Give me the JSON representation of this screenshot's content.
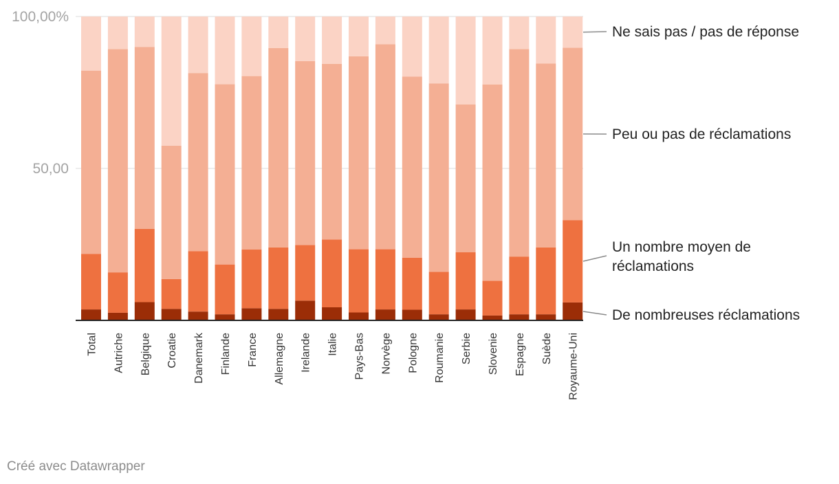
{
  "chart_data": {
    "type": "stacked-bar",
    "orientation": "vertical",
    "ylim": [
      0,
      100
    ],
    "ytick_labels": [
      {
        "value": 100,
        "label": "100,00%"
      },
      {
        "value": 50,
        "label": "50,00"
      }
    ],
    "grid": true,
    "legend_placement": "right, aligned to last bar",
    "categories": [
      "Total",
      "Autriche",
      "Belgique",
      "Croatie",
      "Danemark",
      "Finlande",
      "France",
      "Allemagne",
      "Irelande",
      "Italie",
      "Pays-Bas",
      "Norvège",
      "Pologne",
      "Roumanie",
      "Serbie",
      "Slovenie",
      "Espagne",
      "Suède",
      "Royaume-Uni"
    ],
    "series": [
      {
        "name": "De nombreuses réclamations",
        "color": "#9b2d07",
        "values": [
          3.6,
          2.5,
          6.0,
          3.8,
          2.9,
          2.0,
          4.0,
          3.8,
          6.5,
          4.3,
          2.6,
          3.6,
          3.5,
          2.0,
          3.6,
          1.6,
          2.0,
          2.0,
          5.9
        ]
      },
      {
        "name": "Un nombre moyen de réclamations",
        "color": "#ee7140",
        "values": [
          18.3,
          13.3,
          24.1,
          9.8,
          19.9,
          16.4,
          19.3,
          20.2,
          18.3,
          22.3,
          20.8,
          19.8,
          17.1,
          14.0,
          18.8,
          11.4,
          19.0,
          22.0,
          27.1
        ]
      },
      {
        "name": "Peu ou pas de réclamations",
        "color": "#f4af94",
        "values": [
          60.3,
          73.5,
          59.9,
          43.9,
          58.6,
          59.3,
          57.1,
          65.6,
          60.5,
          57.8,
          63.5,
          67.5,
          59.6,
          62.0,
          48.7,
          64.6,
          68.3,
          60.5,
          56.7
        ]
      },
      {
        "name": "Ne sais pas / pas de réponse",
        "color": "#fbd3c5",
        "values": [
          17.8,
          10.7,
          10.0,
          42.5,
          18.6,
          22.3,
          19.6,
          10.4,
          14.7,
          15.6,
          13.1,
          9.1,
          19.8,
          22.0,
          28.9,
          22.4,
          10.7,
          15.5,
          10.3
        ]
      }
    ]
  },
  "legend_labels": [
    {
      "text": "Ne sais pas / pas de réponse"
    },
    {
      "text": "Peu ou pas de réclamations"
    },
    {
      "text": "Un nombre moyen de",
      "text2": "réclamations"
    },
    {
      "text": "De nombreuses réclamations"
    }
  ],
  "footer": {
    "credit": "Créé avec Datawrapper"
  }
}
